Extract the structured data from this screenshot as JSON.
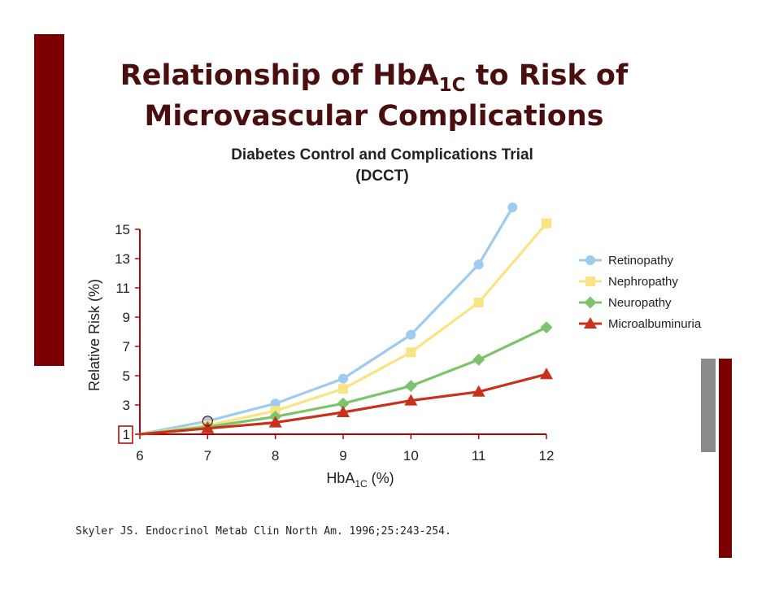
{
  "slide": {
    "title_line1_pre": "Relationship of HbA",
    "title_line1_sub": "1C",
    "title_line1_post": " to Risk of",
    "title_line2": "Microvascular Complications",
    "subtitle_line1": "Diabetes Control and Complications Trial",
    "subtitle_line2": "(DCCT)",
    "footnote": "Skyler JS. Endocrinol Metab Clin North Am. 1996;25:243-254.",
    "accent_color": "#7b0000",
    "title_color": "#4a0e0e"
  },
  "chart_data": {
    "type": "line",
    "title": "",
    "xlabel_pre": "HbA",
    "xlabel_sub": "1C",
    "xlabel_post": " (%)",
    "ylabel": "Relative Risk (%)",
    "xlim": [
      6,
      12
    ],
    "ylim": [
      1,
      15
    ],
    "x_ticks": [
      6,
      7,
      8,
      9,
      10,
      11,
      12
    ],
    "y_ticks": [
      1,
      3,
      5,
      7,
      9,
      11,
      13,
      15
    ],
    "grid": false,
    "legend_position": "right",
    "series": [
      {
        "name": "Retinopathy",
        "color": "#9ecbee",
        "marker": "circle",
        "points": [
          [
            6,
            1
          ],
          [
            7,
            1.9
          ],
          [
            8,
            3.1
          ],
          [
            9,
            4.8
          ],
          [
            10,
            7.8
          ],
          [
            11,
            12.6
          ],
          [
            11.5,
            16.5
          ]
        ]
      },
      {
        "name": "Nephropathy",
        "color": "#f9e483",
        "marker": "square",
        "points": [
          [
            6,
            1
          ],
          [
            7,
            1.6
          ],
          [
            8,
            2.6
          ],
          [
            9,
            4.1
          ],
          [
            10,
            6.6
          ],
          [
            11,
            10
          ],
          [
            12,
            15.4
          ]
        ]
      },
      {
        "name": "Neuropathy",
        "color": "#7dc36b",
        "marker": "diamond",
        "points": [
          [
            6,
            1
          ],
          [
            7,
            1.5
          ],
          [
            8,
            2.2
          ],
          [
            9,
            3.1
          ],
          [
            10,
            4.3
          ],
          [
            11,
            6.1
          ],
          [
            12,
            8.3
          ]
        ]
      },
      {
        "name": "Microalbuminuria",
        "color": "#c8321c",
        "marker": "triangle",
        "points": [
          [
            6,
            1
          ],
          [
            7,
            1.4
          ],
          [
            8,
            1.8
          ],
          [
            9,
            2.5
          ],
          [
            10,
            3.3
          ],
          [
            11,
            3.9
          ],
          [
            12,
            5.1
          ]
        ]
      }
    ]
  }
}
